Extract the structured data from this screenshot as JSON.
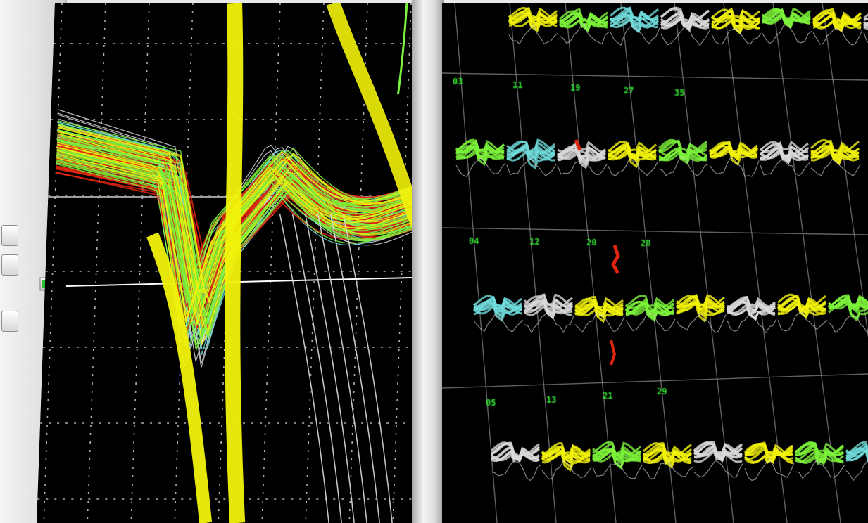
{
  "colors": {
    "background": "#000000",
    "yellow": "#f2f20a",
    "red": "#e0260f",
    "green": "#7cf23a",
    "cyan": "#6fd9d9",
    "white": "#d9d9d9",
    "grid": "#cfcfcf",
    "label": "#33e533",
    "bezel": "#e9e9e9"
  },
  "grid_panel": {
    "channel_labels": [
      {
        "row": 1,
        "text": "03"
      },
      {
        "row": 1,
        "text": "11"
      },
      {
        "row": 1,
        "text": "19"
      },
      {
        "row": 1,
        "text": "27"
      },
      {
        "row": 1,
        "text": "35"
      },
      {
        "row": 2,
        "text": "04"
      },
      {
        "row": 2,
        "text": "12"
      },
      {
        "row": 2,
        "text": "20"
      },
      {
        "row": 2,
        "text": "28"
      },
      {
        "row": 3,
        "text": "05"
      },
      {
        "row": 3,
        "text": "13"
      },
      {
        "row": 3,
        "text": "21"
      },
      {
        "row": 3,
        "text": "29"
      }
    ]
  },
  "side_controls": {
    "buttons": [
      "btn-1",
      "btn-2",
      "btn-3"
    ],
    "slider_icon": "slider-thumb-icon"
  }
}
